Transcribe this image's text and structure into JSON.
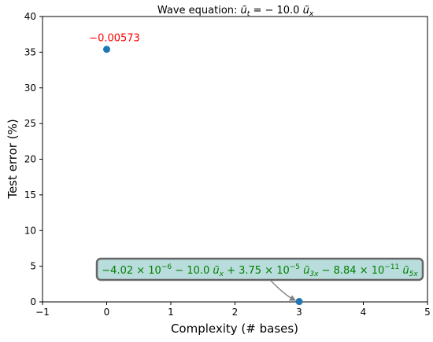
{
  "chart_data": {
    "type": "scatter",
    "title": "Wave equation: ũ_t = −10.0 ũ_x",
    "title_parts": {
      "lhs": "ũ",
      "lhs_sub": "t",
      "middle": " = − 10.0 ",
      "rhs": "ũ",
      "rhs_sub": "x",
      "prefix": "Wave equation: "
    },
    "xlabel": "Complexity (# bases)",
    "ylabel": "Test error (%)",
    "xlim": [
      -1,
      5
    ],
    "ylim": [
      0,
      40
    ],
    "xticks": [
      -1,
      0,
      1,
      2,
      3,
      4,
      5
    ],
    "yticks": [
      0,
      5,
      10,
      15,
      20,
      25,
      30,
      35,
      40
    ],
    "xtick_labels": [
      "−1",
      "0",
      "1",
      "2",
      "3",
      "4",
      "5"
    ],
    "ytick_labels": [
      "0",
      "5",
      "10",
      "15",
      "20",
      "25",
      "30",
      "35",
      "40"
    ],
    "grid": false,
    "point_color": "#1f77b4",
    "points": [
      {
        "x": 0,
        "y": 35.4
      },
      {
        "x": 3,
        "y": 0.05
      }
    ],
    "annotations": [
      {
        "text": "−0.00573",
        "color": "#ff0000",
        "anchor_point": 0
      },
      {
        "text": "−4.02 × 10⁻⁶ − 10.0 ũₓ + 3.75 × 10⁻⁵ ũ₃ₓ − 8.84 × 10⁻¹¹ ũ₅ₓ",
        "color": "#008000",
        "box_fill": "#b9dcdc",
        "box_stroke": "#666666",
        "arrow_color": "#808080",
        "anchor_point": 1,
        "parts": {
          "c0": "−4.02 × 10",
          "c0_exp": "−6",
          "t1": " − 10.0 ",
          "u1": "ũ",
          "u1_sub": "x",
          "t2": " + 3.75 × 10",
          "t2_exp": "−5",
          "u2": " ũ",
          "u2_sub": "3x",
          "t3": " − 8.84 × 10",
          "t3_exp": "−11",
          "u3": " ũ",
          "u3_sub": "5x"
        }
      }
    ]
  }
}
